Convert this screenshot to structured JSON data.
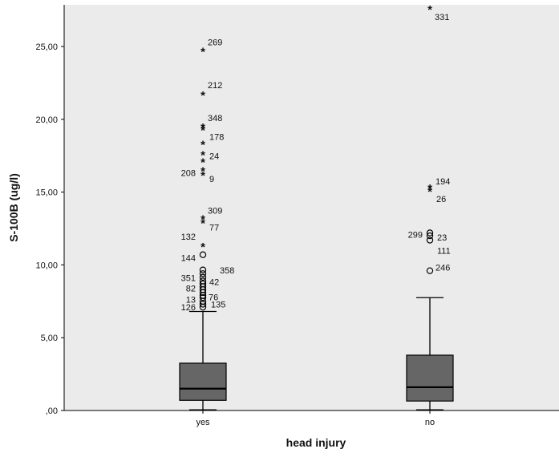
{
  "chart_data": {
    "type": "boxplot",
    "title": "",
    "xlabel": "head injury",
    "ylabel": "S-100B (ug/l)",
    "ylim": [
      0,
      27.5
    ],
    "yticks": [
      0,
      5,
      10,
      15,
      20,
      25
    ],
    "ytick_labels": [
      ",00",
      "5,00",
      "10,00",
      "15,00",
      "20,00",
      "25,00"
    ],
    "grid": false,
    "colors": {
      "plot_bg": "#ebebeb",
      "box_fill": "#666666",
      "line": "#000000"
    },
    "categories": [
      "yes",
      "no"
    ],
    "boxes": [
      {
        "category": "yes",
        "whisker_low": 0.05,
        "q1": 0.7,
        "median": 1.5,
        "q3": 3.25,
        "whisker_high": 6.8,
        "outliers": [
          {
            "value": 7.1,
            "marker": "circle",
            "label": "126"
          },
          {
            "value": 7.3,
            "marker": "circle",
            "label": "135"
          },
          {
            "value": 7.5,
            "marker": "circle",
            "label": ""
          },
          {
            "value": 7.75,
            "marker": "circle",
            "label": "13"
          },
          {
            "value": 7.9,
            "marker": "circle",
            "label": "76"
          },
          {
            "value": 8.1,
            "marker": "circle",
            "label": ""
          },
          {
            "value": 8.3,
            "marker": "circle",
            "label": ""
          },
          {
            "value": 8.5,
            "marker": "circle",
            "label": "82"
          },
          {
            "value": 8.7,
            "marker": "circle",
            "label": ""
          },
          {
            "value": 8.9,
            "marker": "circle",
            "label": "42"
          },
          {
            "value": 9.15,
            "marker": "circle",
            "label": ""
          },
          {
            "value": 9.4,
            "marker": "circle",
            "label": "351"
          },
          {
            "value": 9.65,
            "marker": "circle",
            "label": "358"
          },
          {
            "value": 10.7,
            "marker": "circle",
            "label": "144"
          },
          {
            "value": 11.3,
            "marker": "star",
            "label": "132"
          },
          {
            "value": 12.9,
            "marker": "star",
            "label": "77"
          },
          {
            "value": 13.2,
            "marker": "star",
            "label": "309"
          },
          {
            "value": 16.2,
            "marker": "star",
            "label": "9"
          },
          {
            "value": 16.5,
            "marker": "star",
            "label": "208"
          },
          {
            "value": 17.1,
            "marker": "star",
            "label": ""
          },
          {
            "value": 17.6,
            "marker": "star",
            "label": "24"
          },
          {
            "value": 18.3,
            "marker": "star",
            "label": ""
          },
          {
            "value": 19.3,
            "marker": "star",
            "label": "178"
          },
          {
            "value": 19.5,
            "marker": "star",
            "label": "348"
          },
          {
            "value": 21.7,
            "marker": "star",
            "label": "212"
          },
          {
            "value": 24.7,
            "marker": "star",
            "label": "269"
          }
        ]
      },
      {
        "category": "no",
        "whisker_low": 0.05,
        "q1": 0.65,
        "median": 1.6,
        "q3": 3.8,
        "whisker_high": 7.75,
        "outliers": [
          {
            "value": 9.6,
            "marker": "circle",
            "label": "246"
          },
          {
            "value": 11.7,
            "marker": "circle",
            "label": "111"
          },
          {
            "value": 12.0,
            "marker": "circle",
            "label": "23"
          },
          {
            "value": 12.2,
            "marker": "circle",
            "label": "299"
          },
          {
            "value": 15.1,
            "marker": "star",
            "label": "26"
          },
          {
            "value": 15.3,
            "marker": "star",
            "label": "194"
          },
          {
            "value": 27.6,
            "marker": "star",
            "label": "331"
          }
        ]
      }
    ]
  }
}
